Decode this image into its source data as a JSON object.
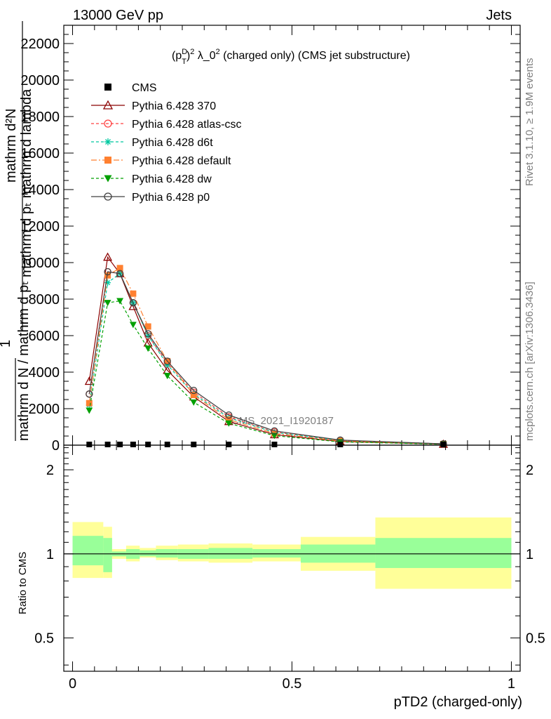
{
  "header": {
    "left": "13000 GeV pp",
    "right": "Jets"
  },
  "side_labels": {
    "rivet": "Rivet 3.1.10, ≥ 1.9M events",
    "mcplots": "mcplots.cern.ch [arXiv:1306.3436]"
  },
  "watermark": "CMS_2021_I1920187",
  "chart_data": [
    {
      "type": "line",
      "title": "(p_T^D)^2 λ_0^2 (charged only) (CMS jet substructure)",
      "title_parts": {
        "pre": "(p",
        "sup_D": "D",
        "sub_T": "T",
        "mid": ")",
        "sup2": "2",
        "lambda": " λ_0",
        "sup2b": "2",
        "post": " (charged only) (CMS jet substructure)"
      },
      "xlabel": "pTD2 (charged-only)",
      "ylabel": "1 / mathrm dN / mathrm d p_T mathrm d^2N / mathrm d p_T mathrm d lambda",
      "ylabel_lines": {
        "top": "mathrm d²N",
        "top2": "mathrm d pₜ mathrm d lambda",
        "one": "1",
        "bottom": "mathrm d N / mathrm d pₜ"
      },
      "xlim": [
        -0.02,
        1.02
      ],
      "ylim": [
        0,
        23000
      ],
      "y_ticks": [
        0,
        2000,
        4000,
        6000,
        8000,
        10000,
        12000,
        14000,
        16000,
        18000,
        20000,
        22000
      ],
      "y_tick_labels": [
        "0",
        "2000",
        "4000",
        "6000",
        "8000",
        "10000",
        "12000",
        "14000",
        "16000",
        "18000",
        "20000",
        "22000"
      ],
      "x_ticks": [
        0,
        0.5,
        1
      ],
      "x_tick_labels": [
        "0",
        "0.5",
        "1"
      ],
      "legend_position": "top-left",
      "series": [
        {
          "name": "CMS",
          "color": "#000000",
          "marker": "square",
          "x": [
            0.038,
            0.08,
            0.108,
            0.138,
            0.172,
            0.216,
            0.276,
            0.356,
            0.46,
            0.61,
            0.845
          ],
          "y": [
            0,
            0,
            0,
            0,
            0,
            0,
            0,
            0,
            0,
            0,
            0
          ]
        },
        {
          "name": "Pythia 6.428 370",
          "color": "#8b0000",
          "marker": "triangle-open",
          "dash": "solid",
          "x": [
            0.038,
            0.08,
            0.108,
            0.138,
            0.172,
            0.216,
            0.276,
            0.356,
            0.46,
            0.61,
            0.845
          ],
          "y": [
            3500,
            10300,
            9400,
            7600,
            5600,
            4100,
            2650,
            1300,
            580,
            200,
            55
          ]
        },
        {
          "name": "Pythia 6.428 atlas-csc",
          "color": "#ff4040",
          "marker": "circle-open",
          "dash": "dashed",
          "x": [
            0.038,
            0.08,
            0.108,
            0.138,
            0.172,
            0.216,
            0.276,
            0.356,
            0.46,
            0.61,
            0.845
          ],
          "y": [
            2800,
            9500,
            9400,
            7800,
            6000,
            4500,
            2900,
            1550,
            720,
            260,
            70
          ]
        },
        {
          "name": "Pythia 6.428 d6t",
          "color": "#00c8a0",
          "marker": "star",
          "dash": "dashed",
          "x": [
            0.038,
            0.08,
            0.108,
            0.138,
            0.172,
            0.216,
            0.276,
            0.356,
            0.46,
            0.61,
            0.845
          ],
          "y": [
            2200,
            8900,
            9400,
            7800,
            6000,
            4400,
            2800,
            1500,
            700,
            250,
            70
          ]
        },
        {
          "name": "Pythia 6.428 default",
          "color": "#ff8030",
          "marker": "square-filled",
          "dash": "dashdot",
          "x": [
            0.038,
            0.08,
            0.108,
            0.138,
            0.172,
            0.216,
            0.276,
            0.356,
            0.46,
            0.61,
            0.845
          ],
          "y": [
            2300,
            9300,
            9700,
            8300,
            6500,
            4600,
            2750,
            1400,
            640,
            230,
            62
          ]
        },
        {
          "name": "Pythia 6.428 dw",
          "color": "#00a000",
          "marker": "triangle-down",
          "dash": "dashed",
          "x": [
            0.038,
            0.08,
            0.108,
            0.138,
            0.172,
            0.216,
            0.276,
            0.356,
            0.46,
            0.61,
            0.845
          ],
          "y": [
            1900,
            7800,
            7900,
            6600,
            5300,
            3800,
            2350,
            1200,
            520,
            180,
            50
          ]
        },
        {
          "name": "Pythia 6.428 p0",
          "color": "#404040",
          "marker": "circle-open",
          "dash": "solid",
          "x": [
            0.038,
            0.08,
            0.108,
            0.138,
            0.172,
            0.216,
            0.276,
            0.356,
            0.46,
            0.61,
            0.845
          ],
          "y": [
            2800,
            9500,
            9400,
            7800,
            6100,
            4600,
            3000,
            1650,
            780,
            280,
            72
          ]
        }
      ]
    },
    {
      "type": "area",
      "ylabel": "Ratio to CMS",
      "xlim": [
        -0.02,
        1.02
      ],
      "ylim": [
        0.38,
        2.45
      ],
      "log_scale_y": true,
      "y_ticks": [
        0.5,
        1,
        2
      ],
      "y_tick_labels": [
        "0.5",
        "1",
        "2"
      ],
      "reference_line": 1,
      "bins": [
        {
          "x_low": 0.0,
          "x_high": 0.07,
          "stat_low": 0.91,
          "stat_high": 1.16,
          "tot_low": 0.82,
          "tot_high": 1.3
        },
        {
          "x_low": 0.07,
          "x_high": 0.09,
          "stat_low": 0.86,
          "stat_high": 1.14,
          "tot_low": 0.82,
          "tot_high": 1.25
        },
        {
          "x_low": 0.09,
          "x_high": 0.122,
          "stat_low": 0.98,
          "stat_high": 1.02,
          "tot_low": 0.96,
          "tot_high": 1.04
        },
        {
          "x_low": 0.122,
          "x_high": 0.153,
          "stat_low": 0.96,
          "stat_high": 1.04,
          "tot_low": 0.94,
          "tot_high": 1.07
        },
        {
          "x_low": 0.153,
          "x_high": 0.19,
          "stat_low": 0.98,
          "stat_high": 1.03,
          "tot_low": 0.97,
          "tot_high": 1.05
        },
        {
          "x_low": 0.19,
          "x_high": 0.24,
          "stat_low": 0.97,
          "stat_high": 1.04,
          "tot_low": 0.95,
          "tot_high": 1.07
        },
        {
          "x_low": 0.24,
          "x_high": 0.31,
          "stat_low": 0.96,
          "stat_high": 1.04,
          "tot_low": 0.94,
          "tot_high": 1.08
        },
        {
          "x_low": 0.31,
          "x_high": 0.41,
          "stat_low": 0.96,
          "stat_high": 1.05,
          "tot_low": 0.93,
          "tot_high": 1.09
        },
        {
          "x_low": 0.41,
          "x_high": 0.52,
          "stat_low": 0.97,
          "stat_high": 1.04,
          "tot_low": 0.94,
          "tot_high": 1.08
        },
        {
          "x_low": 0.52,
          "x_high": 0.69,
          "stat_low": 0.93,
          "stat_high": 1.08,
          "tot_low": 0.87,
          "tot_high": 1.15
        },
        {
          "x_low": 0.69,
          "x_high": 1.0,
          "stat_low": 0.89,
          "stat_high": 1.14,
          "tot_low": 0.75,
          "tot_high": 1.35
        }
      ],
      "colors": {
        "stat": "#99ff99",
        "total": "#ffff99",
        "line": "#000000"
      }
    }
  ]
}
